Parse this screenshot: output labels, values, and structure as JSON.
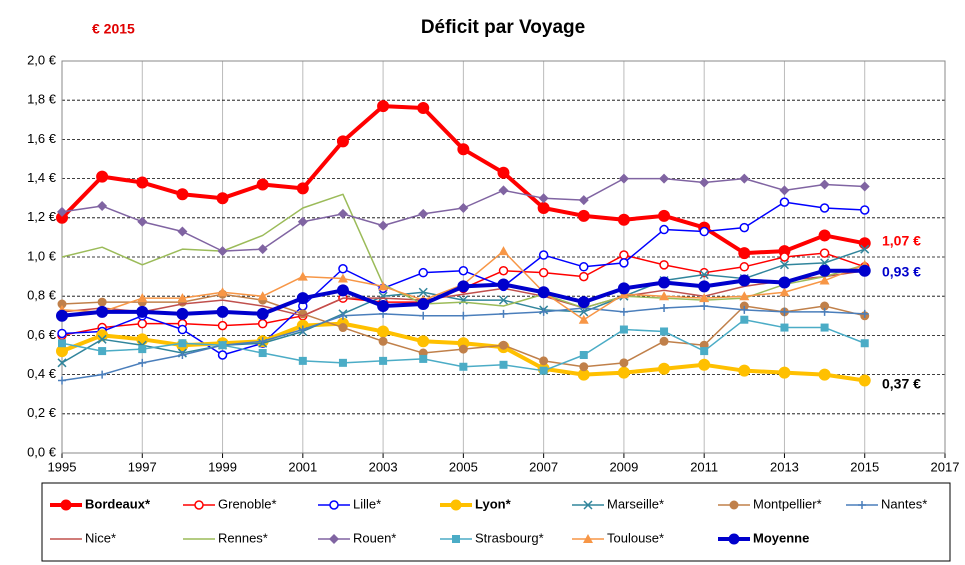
{
  "chart_data": {
    "type": "line",
    "title": "Déficit par Voyage",
    "annotations": [
      "€ 2015",
      "1,07 €",
      "0,93 €",
      "0,37 €"
    ],
    "x": [
      1995,
      1996,
      1997,
      1998,
      1999,
      2000,
      2001,
      2002,
      2003,
      2004,
      2005,
      2006,
      2007,
      2008,
      2009,
      2010,
      2011,
      2012,
      2013,
      2014,
      2015
    ],
    "xlim": [
      1995,
      2017
    ],
    "xticks": [
      1995,
      1997,
      1999,
      2001,
      2003,
      2005,
      2007,
      2009,
      2011,
      2013,
      2015,
      2017
    ],
    "ylim": [
      0,
      2
    ],
    "yticks": [
      {
        "value": 0,
        "label": "0,0 €"
      },
      {
        "value": 0.2,
        "label": "0,2 €"
      },
      {
        "value": 0.4,
        "label": "0,4 €"
      },
      {
        "value": 0.6,
        "label": "0,6 €"
      },
      {
        "value": 0.8,
        "label": "0,8 €"
      },
      {
        "value": 1,
        "label": "1,0 €"
      },
      {
        "value": 1.2,
        "label": "1,2 €"
      },
      {
        "value": 1.4,
        "label": "1,4 €"
      },
      {
        "value": 1.6,
        "label": "1,6 €"
      },
      {
        "value": 1.8,
        "label": "1,8 €"
      },
      {
        "value": 2,
        "label": "2,0 €"
      }
    ],
    "grid": true,
    "legend": "bottom",
    "series": [
      {
        "name": "Bordeaux*",
        "color": "#ff0000",
        "marker": "circle",
        "emphasis": true,
        "values": [
          1.2,
          1.41,
          1.38,
          1.32,
          1.3,
          1.37,
          1.35,
          1.59,
          1.77,
          1.76,
          1.55,
          1.43,
          1.25,
          1.21,
          1.19,
          1.21,
          1.15,
          1.02,
          1.03,
          1.11,
          1.07
        ]
      },
      {
        "name": "Grenoble*",
        "color": "#ff0000",
        "marker": "open-circle",
        "emphasis": false,
        "values": [
          0.6,
          0.64,
          0.66,
          0.66,
          0.65,
          0.66,
          0.7,
          0.79,
          0.77,
          0.77,
          0.84,
          0.93,
          0.92,
          0.9,
          1.01,
          0.96,
          0.92,
          0.95,
          1.0,
          1.02,
          0.95
        ]
      },
      {
        "name": "Lille*",
        "color": "#0000ff",
        "marker": "open-circle",
        "emphasis": false,
        "values": [
          0.61,
          0.62,
          0.7,
          0.63,
          0.5,
          0.56,
          0.75,
          0.94,
          0.84,
          0.92,
          0.93,
          0.85,
          1.01,
          0.95,
          0.97,
          1.14,
          1.13,
          1.15,
          1.28,
          1.25,
          1.24
        ]
      },
      {
        "name": "Lyon*",
        "color": "#ffc000",
        "marker": "circle",
        "emphasis": true,
        "values": [
          0.52,
          0.6,
          0.58,
          0.55,
          0.56,
          0.57,
          0.65,
          0.66,
          0.62,
          0.57,
          0.56,
          0.54,
          0.43,
          0.4,
          0.41,
          0.43,
          0.45,
          0.42,
          0.41,
          0.4,
          0.37
        ]
      },
      {
        "name": "Marseille*",
        "color": "#31859c",
        "marker": "x",
        "emphasis": false,
        "values": [
          0.46,
          0.58,
          0.55,
          0.51,
          0.55,
          0.56,
          0.62,
          0.71,
          0.8,
          0.82,
          0.78,
          0.78,
          0.73,
          0.72,
          0.8,
          0.88,
          0.91,
          0.89,
          0.96,
          0.97,
          1.04
        ]
      },
      {
        "name": "Montpellier*",
        "color": "#c0804a",
        "marker": "circle",
        "emphasis": false,
        "values": [
          0.76,
          0.77,
          0.77,
          0.77,
          0.81,
          0.78,
          0.71,
          0.64,
          0.57,
          0.51,
          0.53,
          0.55,
          0.47,
          0.44,
          0.46,
          0.57,
          0.55,
          0.75,
          0.72,
          0.75,
          0.7
        ]
      },
      {
        "name": "Nantes*",
        "color": "#4a7ebb",
        "marker": "plus",
        "emphasis": false,
        "values": [
          0.37,
          0.4,
          0.46,
          0.5,
          0.55,
          0.57,
          0.63,
          0.7,
          0.71,
          0.7,
          0.7,
          0.71,
          0.72,
          0.74,
          0.72,
          0.74,
          0.75,
          0.73,
          0.72,
          0.72,
          0.71
        ]
      },
      {
        "name": "Nice*",
        "color": "#c0504d",
        "marker": "none",
        "emphasis": false,
        "values": [
          0.72,
          0.74,
          0.72,
          0.76,
          0.78,
          0.75,
          0.7,
          0.79,
          0.79,
          0.78,
          0.81,
          0.84,
          0.8,
          0.74,
          0.8,
          0.83,
          0.8,
          0.85,
          0.88,
          0.9,
          0.93
        ]
      },
      {
        "name": "Rennes*",
        "color": "#9bbb59",
        "marker": "none",
        "emphasis": false,
        "values": [
          1.0,
          1.05,
          0.96,
          1.04,
          1.03,
          1.11,
          1.25,
          1.32,
          0.86,
          0.76,
          0.77,
          0.75,
          0.81,
          0.74,
          0.8,
          0.79,
          0.78,
          0.79,
          0.86,
          0.9,
          0.96
        ]
      },
      {
        "name": "Rouen*",
        "color": "#8064a2",
        "marker": "diamond",
        "emphasis": false,
        "values": [
          1.23,
          1.26,
          1.18,
          1.13,
          1.03,
          1.04,
          1.18,
          1.22,
          1.16,
          1.22,
          1.25,
          1.34,
          1.3,
          1.29,
          1.4,
          1.4,
          1.38,
          1.4,
          1.34,
          1.37,
          1.36
        ]
      },
      {
        "name": "Strasbourg*",
        "color": "#4bacc6",
        "marker": "square",
        "emphasis": false,
        "values": [
          0.56,
          0.52,
          0.53,
          0.56,
          0.55,
          0.51,
          0.47,
          0.46,
          0.47,
          0.48,
          0.44,
          0.45,
          0.42,
          0.5,
          0.63,
          0.62,
          0.52,
          0.68,
          0.64,
          0.64,
          0.56
        ]
      },
      {
        "name": "Toulouse*",
        "color": "#f79646",
        "marker": "triangle",
        "emphasis": false,
        "values": [
          0.73,
          0.72,
          0.79,
          0.79,
          0.82,
          0.8,
          0.9,
          0.89,
          0.85,
          0.78,
          0.86,
          1.03,
          0.82,
          0.68,
          0.81,
          0.8,
          0.79,
          0.8,
          0.82,
          0.88,
          0.96
        ]
      },
      {
        "name": "Moyenne",
        "color": "#0000cc",
        "marker": "circle",
        "emphasis": true,
        "values": [
          0.7,
          0.72,
          0.72,
          0.71,
          0.72,
          0.71,
          0.79,
          0.83,
          0.75,
          0.76,
          0.85,
          0.86,
          0.82,
          0.77,
          0.84,
          0.87,
          0.85,
          0.88,
          0.87,
          0.93,
          0.93
        ]
      }
    ]
  }
}
